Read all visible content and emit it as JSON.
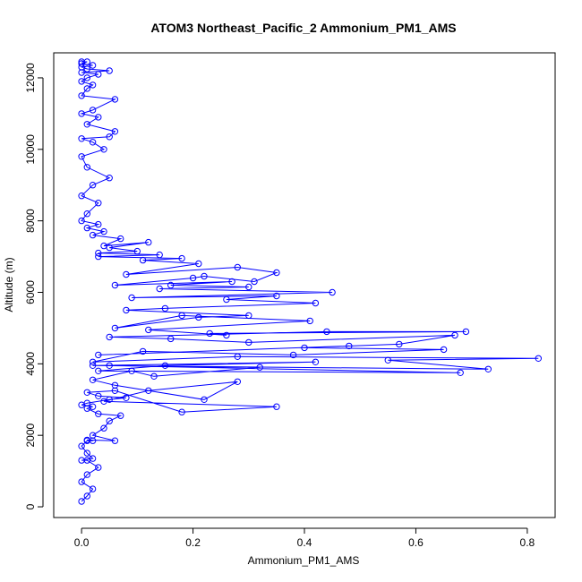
{
  "chart_data": {
    "type": "scatter",
    "title": "ATOM3 Northeast_Pacific_2 Ammonium_PM1_AMS",
    "xlabel": "Ammonium_PM1_AMS",
    "ylabel": "Altitude (m)",
    "xlim": [
      -0.05,
      0.85
    ],
    "ylim": [
      -300,
      12700
    ],
    "xticks": [
      0.0,
      0.2,
      0.4,
      0.6,
      0.8
    ],
    "xtick_labels": [
      "0.0",
      "0.2",
      "0.4",
      "0.6",
      "0.8"
    ],
    "yticks": [
      0,
      2000,
      4000,
      6000,
      8000,
      10000,
      12000
    ],
    "ytick_labels": [
      "0",
      "2000",
      "4000",
      "6000",
      "8000",
      "10000",
      "12000"
    ],
    "grid": false,
    "colors": {
      "series": "#0000ff",
      "axis": "#000000",
      "background": "#ffffff"
    },
    "series": [
      {
        "style": "line+open-circles",
        "x": [
          0.0,
          0.01,
          0.02,
          0.0,
          0.01,
          0.03,
          0.01,
          0.0,
          0.02,
          0.01,
          0.0,
          0.01,
          0.02,
          0.01,
          0.06,
          0.02,
          0.04,
          0.05,
          0.07,
          0.03,
          0.01,
          0.02,
          0.0,
          0.01,
          0.05,
          0.08,
          0.03,
          0.01,
          0.06,
          0.18,
          0.35,
          0.04,
          0.12,
          0.28,
          0.22,
          0.06,
          0.02,
          0.09,
          0.13,
          0.32,
          0.05,
          0.68,
          0.03,
          0.15,
          0.42,
          0.02,
          0.73,
          0.55,
          0.82,
          0.28,
          0.02,
          0.11,
          0.38,
          0.65,
          0.4,
          0.48,
          0.03,
          0.57,
          0.67,
          0.3,
          0.16,
          0.05,
          0.44,
          0.69,
          0.23,
          0.26,
          0.12,
          0.41,
          0.18,
          0.06,
          0.21,
          0.3,
          0.08,
          0.15,
          0.42,
          0.26,
          0.35,
          0.09,
          0.45,
          0.14,
          0.3,
          0.16,
          0.27,
          0.06,
          0.2,
          0.22,
          0.31,
          0.35,
          0.28,
          0.08,
          0.21,
          0.11,
          0.18,
          0.03,
          0.14,
          0.03,
          0.1,
          0.05,
          0.12,
          0.04,
          0.07,
          0.02,
          0.04,
          0.01,
          0.03,
          0.0,
          0.01,
          0.03,
          0.0,
          0.02,
          0.05,
          0.01,
          0.0,
          0.04,
          0.02,
          0.0,
          0.05,
          0.06,
          0.01,
          0.03,
          0.0,
          0.02,
          0.06,
          0.0,
          0.01,
          0.02,
          0.0,
          0.01,
          0.03,
          0.0,
          0.05,
          0.01,
          0.0,
          0.02,
          0.0,
          0.01,
          0.0
        ],
        "y": [
          150,
          300,
          500,
          700,
          900,
          1100,
          1300,
          1300,
          1350,
          1500,
          1700,
          1850,
          1850,
          1870,
          1850,
          2000,
          2200,
          2400,
          2550,
          2600,
          2750,
          2800,
          2850,
          2900,
          3000,
          3050,
          3100,
          3200,
          3250,
          2650,
          2800,
          2950,
          3250,
          3500,
          3000,
          3400,
          3550,
          3800,
          3650,
          3900,
          3950,
          3750,
          3800,
          3950,
          4050,
          3950,
          3850,
          4100,
          4150,
          4200,
          4050,
          4350,
          4250,
          4400,
          4450,
          4500,
          4250,
          4550,
          4800,
          4600,
          4700,
          4750,
          4900,
          4900,
          4850,
          4800,
          4950,
          5200,
          5350,
          5000,
          5300,
          5350,
          5500,
          5550,
          5700,
          5800,
          5900,
          5850,
          6000,
          6100,
          6150,
          6200,
          6300,
          6200,
          6400,
          6450,
          6300,
          6550,
          6700,
          6500,
          6800,
          6900,
          6950,
          7000,
          7050,
          7100,
          7150,
          7250,
          7400,
          7300,
          7500,
          7600,
          7700,
          7800,
          7900,
          8000,
          8200,
          8500,
          8700,
          9000,
          9200,
          9500,
          9800,
          10000,
          10200,
          10300,
          10350,
          10500,
          10700,
          10900,
          11000,
          11100,
          11400,
          11500,
          11700,
          11800,
          11900,
          12000,
          12100,
          12150,
          12200,
          12250,
          12300,
          12350,
          12400,
          12450,
          12450
        ]
      }
    ]
  }
}
